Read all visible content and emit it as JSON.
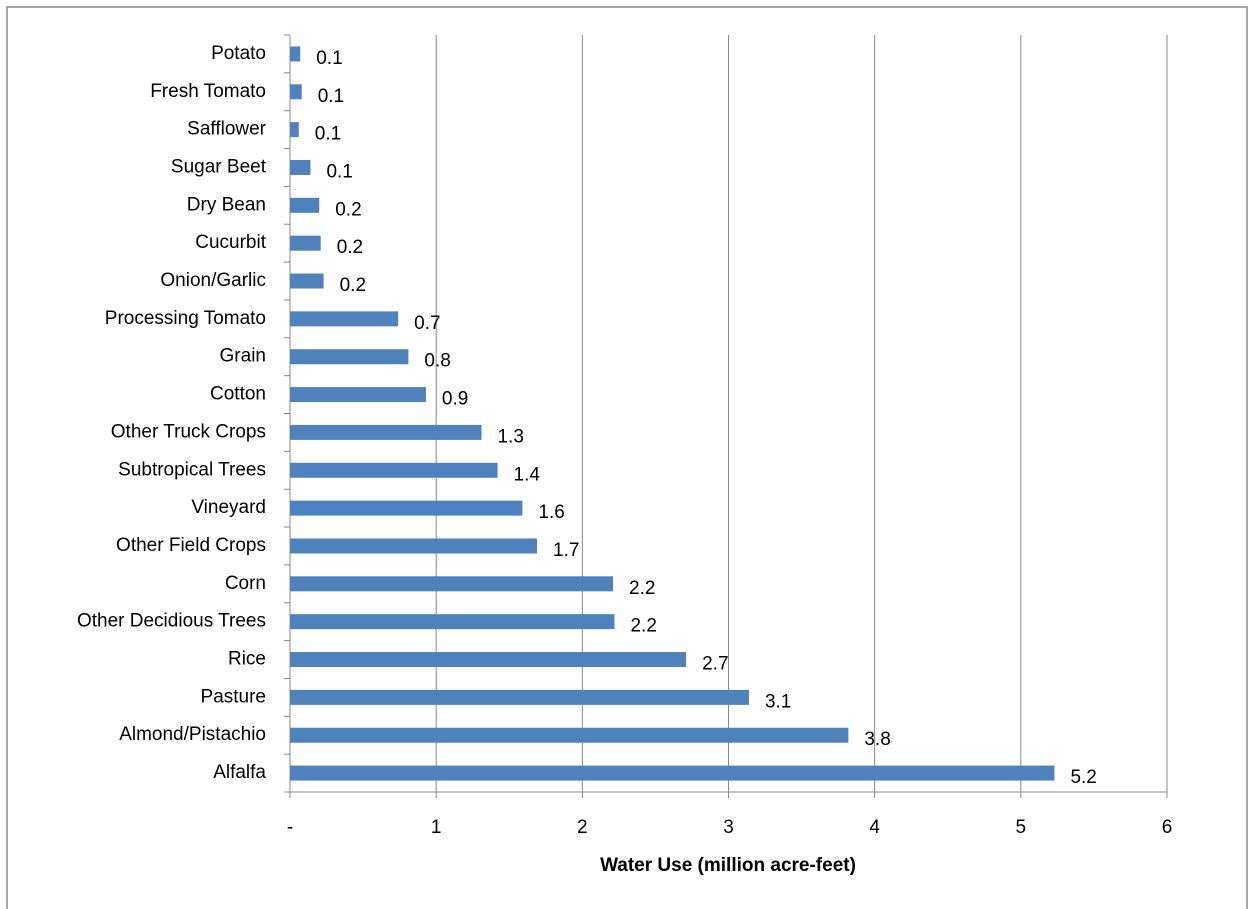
{
  "chart_data": {
    "type": "barh",
    "xlabel": "Water Use (million acre-feet)",
    "categories": [
      "Potato",
      "Fresh Tomato",
      "Safflower",
      "Sugar Beet",
      "Dry Bean",
      "Cucurbit",
      "Onion/Garlic",
      "Processing Tomato",
      "Grain",
      "Cotton",
      "Other Truck Crops",
      "Subtropical Trees",
      "Vineyard",
      "Other Field Crops",
      "Corn",
      "Other Decidious Trees",
      "Rice",
      "Pasture",
      "Almond/Pistachio",
      "Alfalfa"
    ],
    "values": [
      0.07,
      0.08,
      0.06,
      0.14,
      0.2,
      0.21,
      0.23,
      0.74,
      0.81,
      0.93,
      1.31,
      1.42,
      1.59,
      1.69,
      2.21,
      2.22,
      2.71,
      3.14,
      3.82,
      5.23
    ],
    "value_labels": [
      "0.1",
      "0.1",
      "0.1",
      "0.1",
      "0.2",
      "0.2",
      "0.2",
      "0.7",
      "0.8",
      "0.9",
      "1.3",
      "1.4",
      "1.6",
      "1.7",
      "2.2",
      "2.2",
      "2.7",
      "3.1",
      "3.8",
      "5.2"
    ],
    "color": "#4f81bd",
    "xlim": [
      0,
      6
    ],
    "xticks": [
      {
        "value": 0,
        "label": "-"
      },
      1,
      2,
      3,
      4,
      5,
      6
    ],
    "grid": true
  }
}
